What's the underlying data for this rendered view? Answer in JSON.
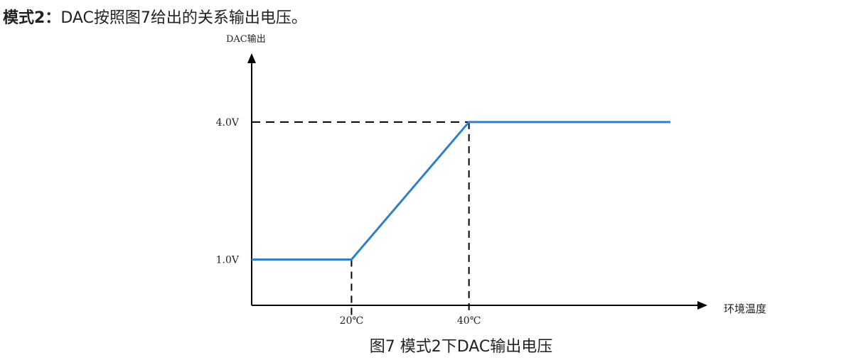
{
  "heading": {
    "label": "模式2：",
    "text": "DAC按照图7给出的关系输出电压。"
  },
  "chart_data": {
    "type": "line",
    "title": "",
    "ylabel": "DAC输出",
    "xlabel": "环境温度",
    "xlim": [
      3,
      80.6
    ],
    "ylim": [
      0,
      5.5
    ],
    "xticks": [
      {
        "value": 20,
        "label": "20℃"
      },
      {
        "value": 40,
        "label": "40℃"
      }
    ],
    "yticks": [
      {
        "value": 1.0,
        "label": "1.0V"
      },
      {
        "value": 4.0,
        "label": "4.0V"
      }
    ],
    "points": [
      [
        3,
        1.0
      ],
      [
        20,
        1.0
      ],
      [
        40,
        4.0
      ],
      [
        74.3,
        4.0
      ]
    ],
    "line_color": "#2f7fcf",
    "grid": false
  },
  "caption": "图7 模式2下DAC输出电压"
}
